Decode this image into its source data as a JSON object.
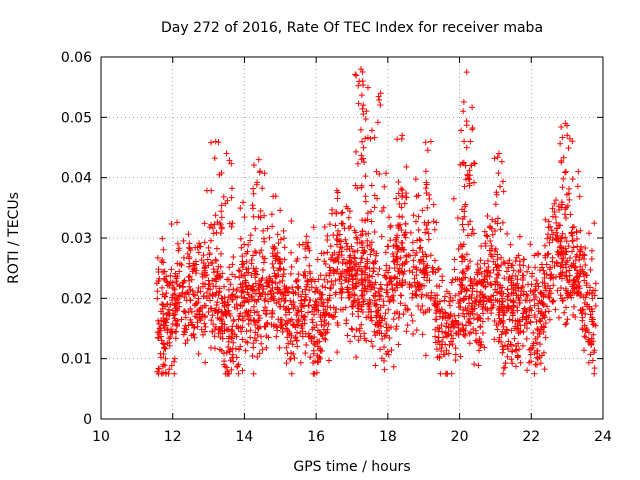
{
  "chart_data": {
    "type": "scatter",
    "title": "Day 272 of 2016, Rate Of TEC Index for receiver maba",
    "xlabel": "GPS time / hours",
    "ylabel": "ROTI / TECUs",
    "xlim": [
      10,
      24
    ],
    "ylim": [
      0,
      0.06
    ],
    "x_ticks": [
      "10",
      "12",
      "14",
      "16",
      "18",
      "20",
      "22",
      "24"
    ],
    "y_ticks": [
      "0",
      "0.01",
      "0.02",
      "0.03",
      "0.04",
      "0.05",
      "0.06"
    ],
    "grid": true,
    "marker": "+",
    "series_color": "#ff0000",
    "data_summary": {
      "time_range_hours": [
        11.55,
        23.8
      ],
      "typical_range": [
        0.01,
        0.03
      ],
      "peaks": [
        {
          "x": 13.2,
          "y": 0.046
        },
        {
          "x": 13.5,
          "y": 0.044
        },
        {
          "x": 14.4,
          "y": 0.043
        },
        {
          "x": 17.25,
          "y": 0.058
        },
        {
          "x": 17.3,
          "y": 0.056
        },
        {
          "x": 17.4,
          "y": 0.051
        },
        {
          "x": 17.8,
          "y": 0.054
        },
        {
          "x": 18.4,
          "y": 0.047
        },
        {
          "x": 19.2,
          "y": 0.046
        },
        {
          "x": 20.2,
          "y": 0.0575
        },
        {
          "x": 20.1,
          "y": 0.051
        },
        {
          "x": 20.3,
          "y": 0.046
        },
        {
          "x": 21.1,
          "y": 0.044
        },
        {
          "x": 22.95,
          "y": 0.049
        },
        {
          "x": 23.0,
          "y": 0.047
        }
      ]
    }
  }
}
